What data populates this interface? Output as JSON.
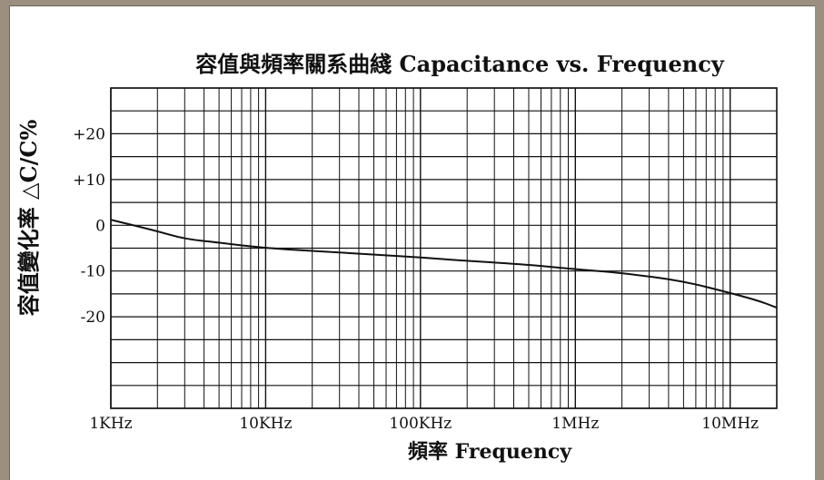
{
  "chart_data": {
    "type": "line",
    "title": "容值與頻率關系曲綫 Capacitance vs. Frequency",
    "xlabel": "頻率 Frequency",
    "ylabel": "容值變化率 △C/C%",
    "x_scale": "log",
    "xlim": [
      "1KHz",
      "20MHz"
    ],
    "ylim": [
      -40,
      30
    ],
    "x_tick_labels": [
      "1KHz",
      "10KHz",
      "100KHz",
      "1MHz",
      "10MHz"
    ],
    "y_tick_labels": [
      "+20",
      "+10",
      "0",
      "-10",
      "-20"
    ],
    "grid": true,
    "series": [
      {
        "x_hz": [
          1000,
          2000,
          3000,
          5000,
          10000,
          20000,
          50000,
          100000,
          200000,
          500000,
          1000000,
          2000000,
          5000000,
          10000000,
          15000000,
          20000000
        ],
        "y": [
          1.2,
          -1.3,
          -3.0,
          -3.8,
          -5.0,
          -5.6,
          -6.4,
          -7.0,
          -7.8,
          -8.6,
          -9.6,
          -10.4,
          -12.2,
          -14.8,
          -16.4,
          -18.0
        ]
      }
    ]
  }
}
